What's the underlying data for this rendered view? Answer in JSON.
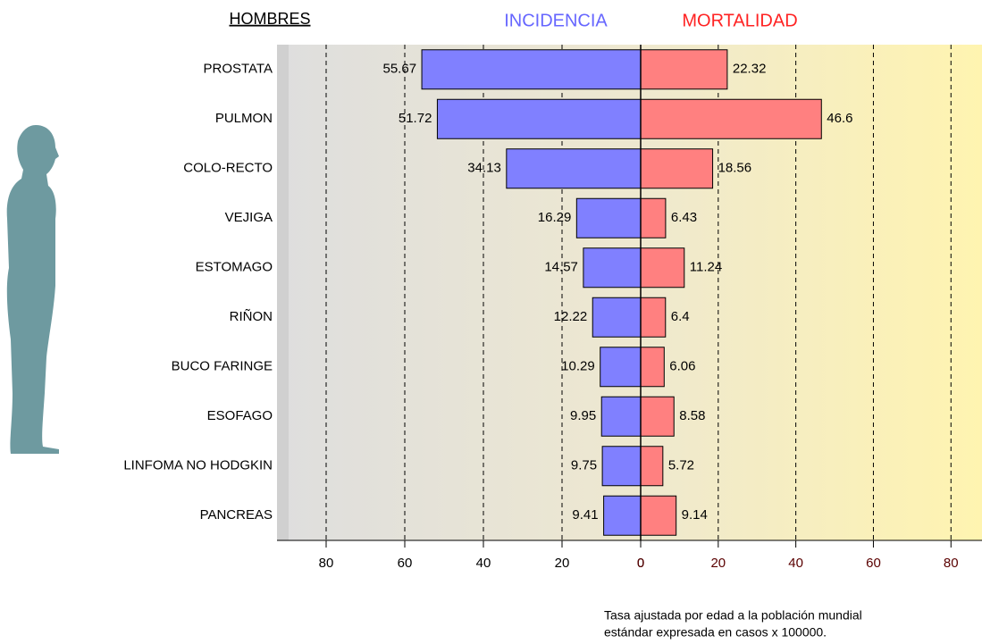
{
  "chart_data": {
    "type": "butterfly-bar",
    "title": "HOMBRES",
    "categories": [
      "PROSTATA",
      "PULMON",
      "COLO-RECTO",
      "VEJIGA",
      "ESTOMAGO",
      "RIÑON",
      "BUCO FARINGE",
      "ESOFAGO",
      "LINFOMA NO HODGKIN",
      "PANCREAS"
    ],
    "series": [
      {
        "name": "INCIDENCIA",
        "color": "#8080ff",
        "label_color": "#6666ff",
        "tick_color": "#000000",
        "values": [
          55.67,
          51.72,
          34.13,
          16.29,
          14.57,
          12.22,
          10.29,
          9.95,
          9.75,
          9.41
        ],
        "xlim": [
          92.5,
          0
        ],
        "xticks": [
          80,
          60,
          40,
          20,
          0
        ]
      },
      {
        "name": "MORTALIDAD",
        "color": "#ff8080",
        "label_color": "#ff2222",
        "tick_color": "#5a0000",
        "values": [
          22.32,
          46.6,
          18.56,
          6.43,
          11.24,
          6.4,
          6.06,
          8.58,
          5.72,
          9.14
        ],
        "xlim": [
          0,
          88
        ],
        "xticks": [
          0,
          20,
          40,
          60,
          80
        ]
      }
    ],
    "grid": true,
    "note": [
      "Tasa ajustada por edad a la población mundial",
      "estándar expresada en casos x 100000."
    ]
  }
}
